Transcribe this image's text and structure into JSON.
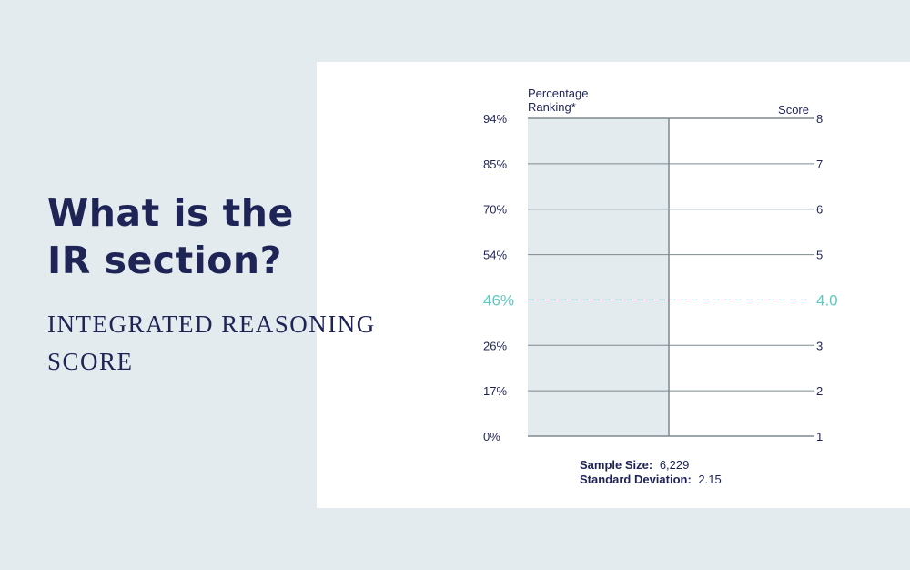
{
  "headline": {
    "line1": "What is the",
    "line2": "IR section?"
  },
  "subtitle": {
    "line1": "INTEGRATED REASONING",
    "line2": "SCORE"
  },
  "colors": {
    "background": "#e3ebef",
    "panel": "#ffffff",
    "navy": "#1e2455",
    "accent": "#5dcbc0",
    "shade": "#e3ebef",
    "grid": "#7d8a8f"
  },
  "chart_data": {
    "type": "table",
    "left_axis_title": [
      "Percentage",
      "Ranking*"
    ],
    "right_axis_title": "Score",
    "rows": [
      {
        "score": "8",
        "percentile": "94%"
      },
      {
        "score": "7",
        "percentile": "85%"
      },
      {
        "score": "6",
        "percentile": "70%"
      },
      {
        "score": "5",
        "percentile": "54%"
      },
      {
        "score": "4.0",
        "percentile": "46%",
        "highlight": true
      },
      {
        "score": "3",
        "percentile": "26%"
      },
      {
        "score": "2",
        "percentile": "17%"
      },
      {
        "score": "1",
        "percentile": "0%"
      }
    ],
    "footer": {
      "sample_label": "Sample Size:",
      "sample_value": "6,229",
      "sd_label": "Standard Deviation:",
      "sd_value": "2.15"
    }
  }
}
